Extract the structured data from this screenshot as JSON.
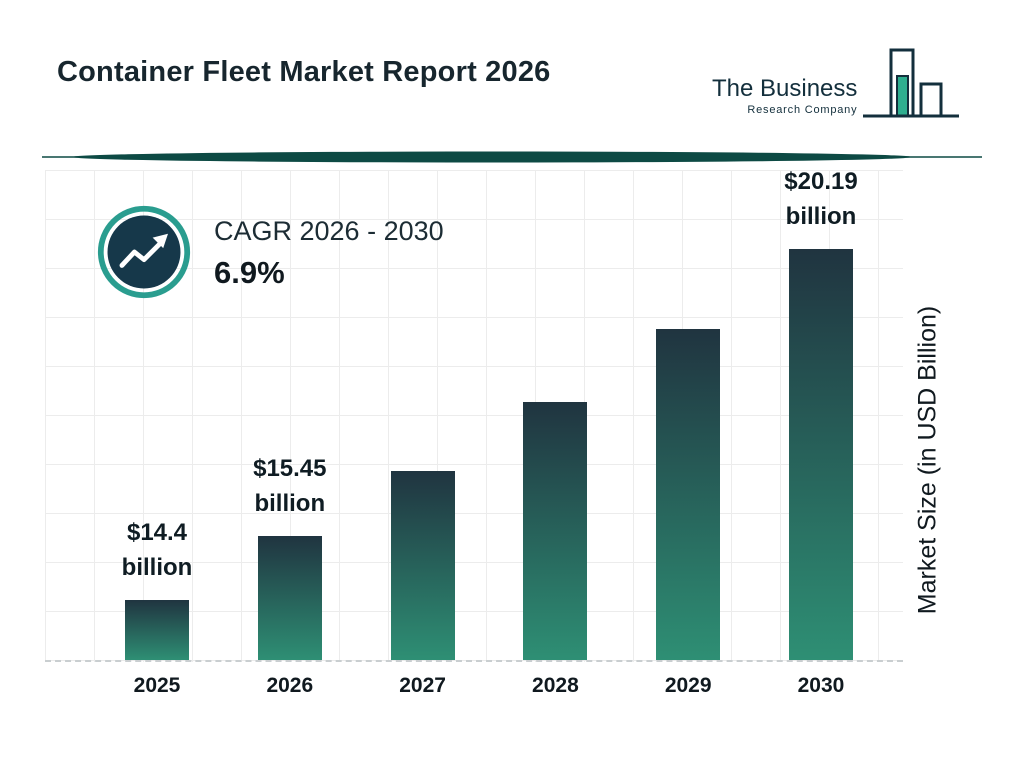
{
  "header": {
    "title": "Container Fleet Market Report 2026",
    "logo": {
      "line1": "The Business",
      "line2": "Research Company"
    }
  },
  "cagr": {
    "label": "CAGR 2026 - 2030",
    "value": "6.9%"
  },
  "chart_data": {
    "type": "bar",
    "title": "Container Fleet Market Report 2026",
    "categories": [
      "2025",
      "2026",
      "2027",
      "2028",
      "2029",
      "2030"
    ],
    "values": [
      14.4,
      15.45,
      16.52,
      17.66,
      18.87,
      20.19
    ],
    "value_labels": [
      [
        "$14.4",
        "billion"
      ],
      [
        "$15.45",
        "billion"
      ],
      [],
      [],
      [],
      [
        "$20.19",
        "billion"
      ]
    ],
    "xlabel": "",
    "ylabel": "Market Size (in USD Billion)",
    "ylim": [
      13.4,
      21.5
    ],
    "grid": true,
    "legend": "none",
    "bar_gradient_top": "#203440",
    "bar_gradient_bottom": "#2e8f74",
    "accent_teal": "#2a9d8f",
    "divider_color": "#0d4a44",
    "badge_fill": "#16384a"
  }
}
